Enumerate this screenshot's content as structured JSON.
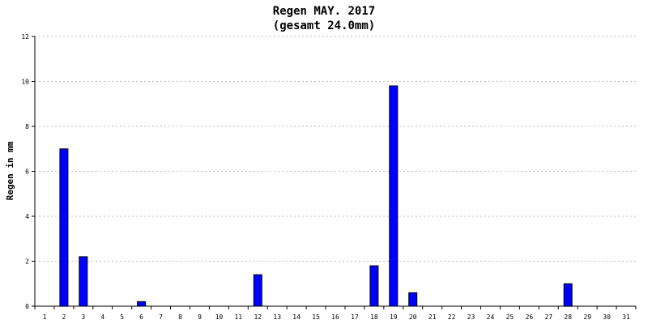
{
  "chart_data": {
    "type": "bar",
    "title": "Regen MAY. 2017",
    "subtitle": "(gesamt 24.0mm)",
    "xlabel": "",
    "ylabel": "Regen in mm",
    "ylim": [
      0,
      12
    ],
    "yticks": [
      0,
      2,
      4,
      6,
      8,
      10,
      12
    ],
    "grid": true,
    "categories": [
      "1",
      "2",
      "3",
      "4",
      "5",
      "6",
      "7",
      "8",
      "9",
      "10",
      "11",
      "12",
      "13",
      "14",
      "15",
      "16",
      "17",
      "18",
      "19",
      "20",
      "21",
      "22",
      "23",
      "24",
      "25",
      "26",
      "27",
      "28",
      "29",
      "30",
      "31"
    ],
    "values": [
      0,
      7.0,
      2.2,
      0,
      0,
      0.2,
      0,
      0,
      0,
      0,
      0,
      1.4,
      0,
      0,
      0,
      0,
      0,
      1.8,
      9.8,
      0.6,
      0,
      0,
      0,
      0,
      0,
      0,
      0,
      1.0,
      0,
      0,
      0
    ],
    "colors": {
      "bar": "#0000ff",
      "grid": "#bbbbbb"
    }
  }
}
